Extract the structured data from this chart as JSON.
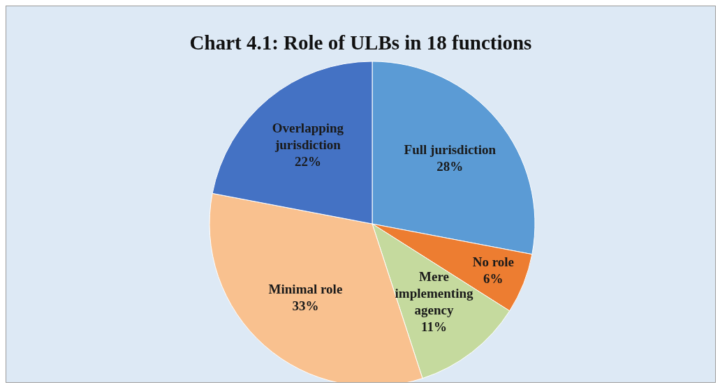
{
  "chart_data": {
    "type": "pie",
    "title": "Chart  4.1: Role of ULBs in 18 functions",
    "categories": [
      "Full jurisdiction",
      "No role",
      "Mere implementing agency",
      "Minimal role",
      "Overlapping jurisdiction"
    ],
    "values": [
      28,
      6,
      11,
      33,
      22
    ],
    "colors": [
      "#5b9bd5",
      "#ed7d31",
      "#c5da9e",
      "#f9c18f",
      "#4472c4"
    ],
    "value_labels": [
      "28%",
      "6%",
      "11%",
      "33%",
      "22%"
    ]
  }
}
